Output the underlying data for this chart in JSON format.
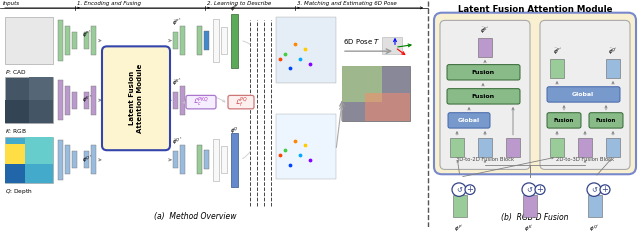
{
  "title_left": "(a)  Method Overview",
  "title_right": "(b)  RGB-D Fusion",
  "title_module": "Latent Fusion Attention Module",
  "header_labels": [
    "Inputs",
    "1. Encoding and Fusing",
    "2. Learning to Describe",
    "3. Matching and Estimating 6D Pose"
  ],
  "input_labels": [
    "P : CAD",
    "K : RGB",
    "Q : Depth"
  ],
  "pose_label": "6D Pose T",
  "block_3d_to_2d": "3D-to-2D Fusion Block",
  "block_2d_to_3d": "2D-to-3D Fusion Block",
  "fusion_label": "Fusion",
  "global_label": "Global",
  "bg_color": "#ffffff",
  "module_bg": "#fdf5d0",
  "module_border": "#3344aa",
  "green_dark": "#5aaa5a",
  "green_light": "#99cc99",
  "purple_color": "#bb99cc",
  "blue_color": "#99bbdd",
  "blue_dark": "#6688cc",
  "outer_bg": "#f8f0d0",
  "outer_border": "#7788cc",
  "inner_bg": "#eeeeee",
  "inner_border": "#aaaaaa",
  "fusion_green": "#88bb88",
  "global_blue": "#7799cc"
}
